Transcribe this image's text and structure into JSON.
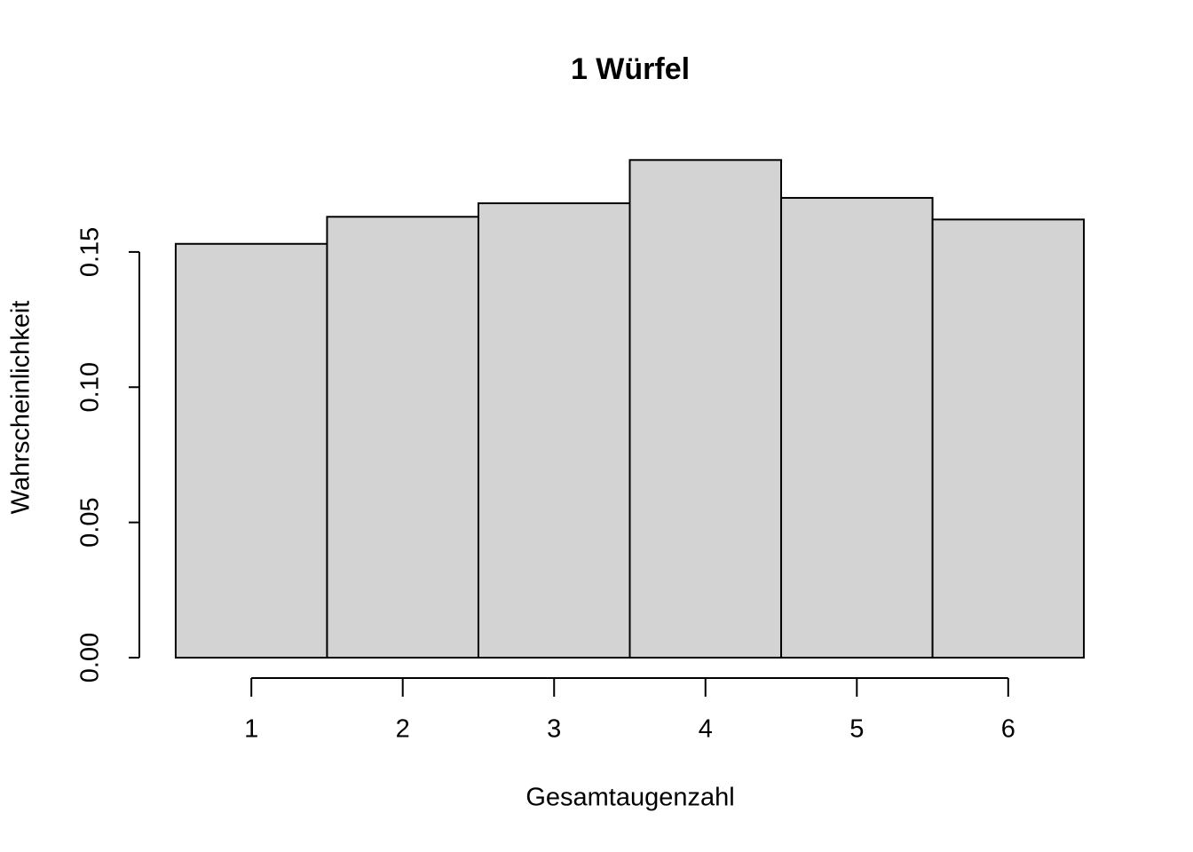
{
  "chart_data": {
    "type": "histogram",
    "title": "1 Würfel",
    "x_label": "Gesamtaugenzahl",
    "y_label": "Wahrscheinlichkeit",
    "bins": [
      0.5,
      1.5,
      2.5,
      3.5,
      4.5,
      5.5,
      6.5
    ],
    "values": [
      0.153,
      0.163,
      0.168,
      0.184,
      0.17,
      0.162
    ],
    "color": "#d3d3d3",
    "xlim": [
      0.26,
      6.74
    ],
    "xticks": [
      1,
      2,
      3,
      4,
      5,
      6
    ],
    "ylim": [
      0,
      0.19
    ],
    "yticks": [
      {
        "value": 0,
        "label": "0.00"
      },
      {
        "value": 0.05,
        "label": "0.05"
      },
      {
        "value": 0.1,
        "label": "0.10"
      },
      {
        "value": 0.15,
        "label": "0.15"
      }
    ],
    "grid": false
  }
}
